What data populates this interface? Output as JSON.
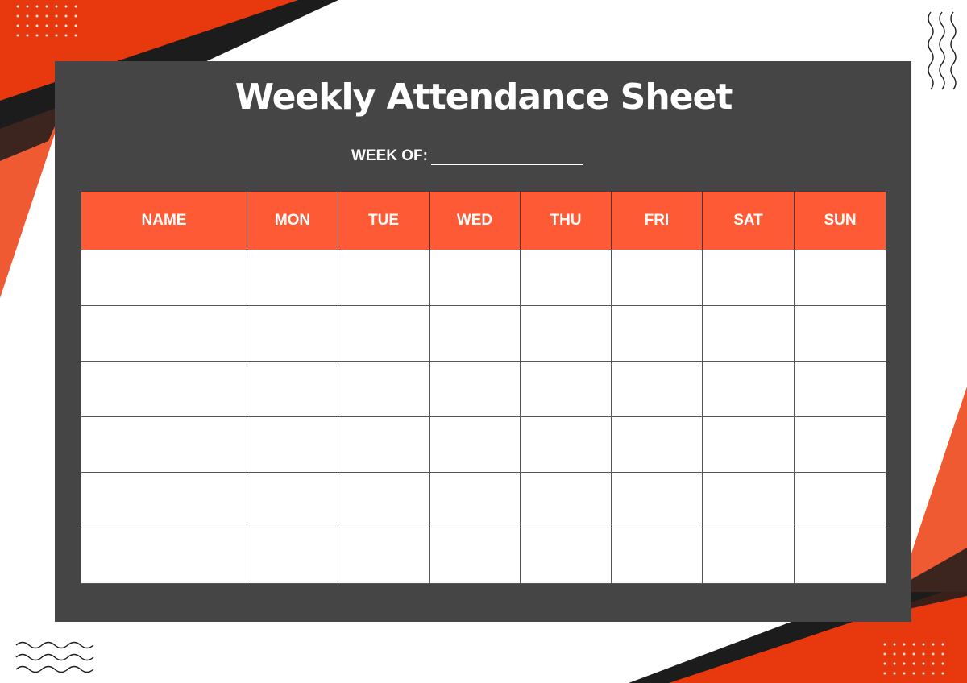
{
  "sheet": {
    "title": "Weekly Attendance Sheet",
    "week_of_label": "WEEK OF:"
  },
  "table": {
    "headers": [
      "NAME",
      "MON",
      "TUE",
      "WED",
      "THU",
      "FRI",
      "SAT",
      "SUN"
    ],
    "row_count": 6
  },
  "colors": {
    "accent": "#ff5a36",
    "accent_dark": "#e8380e",
    "panel": "#454545",
    "black": "#1c1c1c"
  }
}
